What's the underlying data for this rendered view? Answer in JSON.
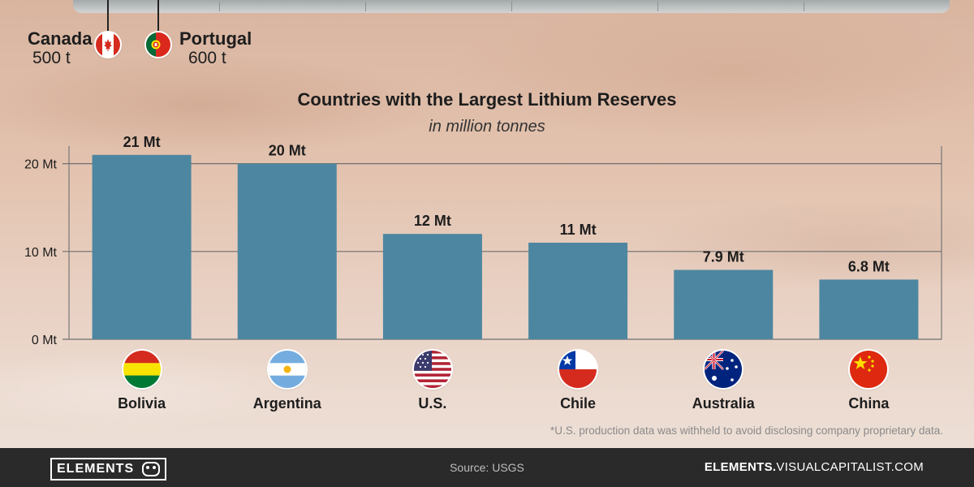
{
  "callouts": [
    {
      "name": "Canada",
      "value": "500 t"
    },
    {
      "name": "Portugal",
      "value": "600 t"
    }
  ],
  "chart_data": {
    "type": "bar",
    "title": "Countries with the Largest Lithium Reserves",
    "subtitle": "in million tonnes",
    "categories": [
      "Bolivia",
      "Argentina",
      "U.S.",
      "Chile",
      "Australia",
      "China"
    ],
    "values": [
      21,
      20,
      12,
      11,
      7.9,
      6.8
    ],
    "data_labels": [
      "21 Mt",
      "20 Mt",
      "12 Mt",
      "11 Mt",
      "7.9 Mt",
      "6.8 Mt"
    ],
    "y_ticks": [
      0,
      10,
      20
    ],
    "y_tick_labels": [
      "0 Mt",
      "10 Mt",
      "20 Mt"
    ],
    "ylim": [
      0,
      22
    ],
    "grid": true,
    "bar_color": "#4d86a0"
  },
  "footnote": "*U.S. production data was withheld to avoid disclosing company proprietary data.",
  "footer": {
    "logo": "ELEMENTS",
    "source": "Source: USGS",
    "site_bold": "ELEMENTS.",
    "site_rest": "VISUALCAPITALIST.COM"
  }
}
